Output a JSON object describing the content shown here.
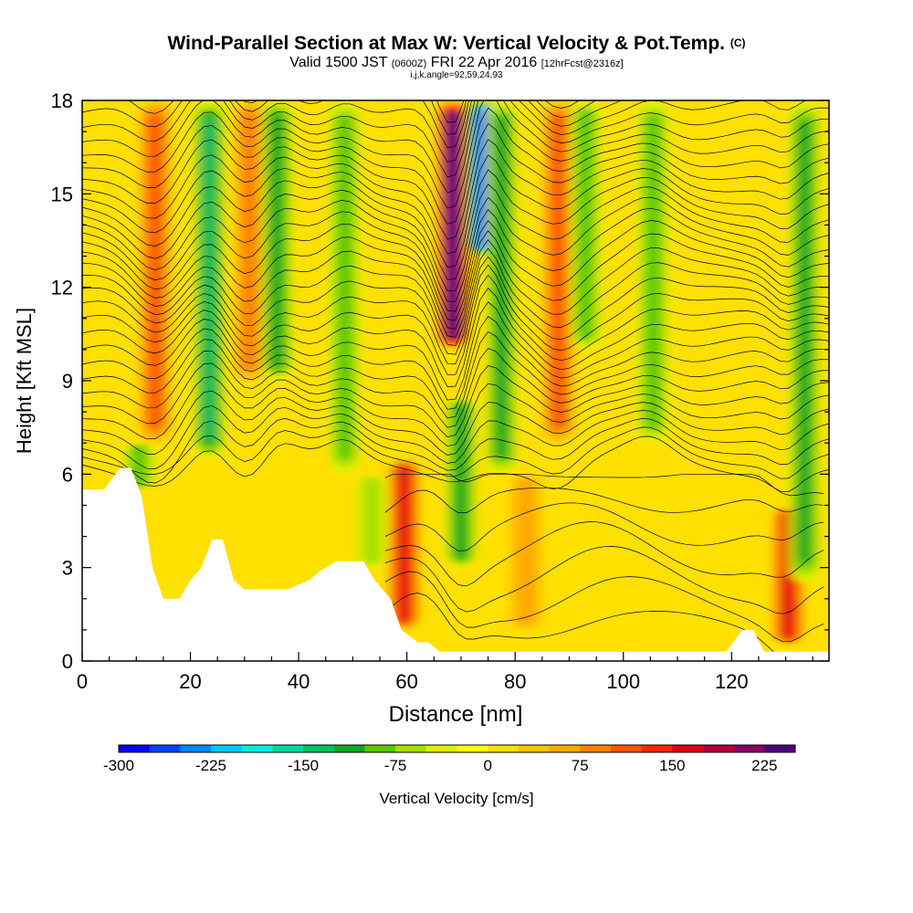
{
  "header": {
    "title": "Wind-Parallel Section at Max W: Vertical Velocity & Pot.Temp.",
    "title_suffix": "(C)",
    "valid_prefix": "Valid 1500 JST",
    "valid_zulu": "(0600Z)",
    "valid_date": "FRI 22 Apr 2016",
    "forecast_info": "[12hrFcst@2316z]",
    "indices": "i,j,k,angle=92,59,24,93"
  },
  "chart_data": {
    "type": "heatmap",
    "xlabel": "Distance [nm]",
    "ylabel": "Height [Kft MSL]",
    "xlim": [
      0,
      138
    ],
    "ylim": [
      0,
      18
    ],
    "xticks": [
      0,
      20,
      40,
      60,
      80,
      100,
      120
    ],
    "yticks": [
      0,
      3,
      6,
      9,
      12,
      15,
      18
    ],
    "colorbar": {
      "label": "Vertical Velocity [cm/s]",
      "min": -300,
      "max": 250,
      "step": 25,
      "tick_values": [
        -300,
        -225,
        -150,
        -75,
        0,
        75,
        150,
        225
      ],
      "colors": [
        "#0000ff",
        "#0044ff",
        "#0088ff",
        "#00c8ff",
        "#00f0e0",
        "#00d8a0",
        "#00c060",
        "#10a820",
        "#58c800",
        "#a8e000",
        "#e0f000",
        "#ffff00",
        "#ffe000",
        "#ffc400",
        "#ffa800",
        "#ff8000",
        "#ff5400",
        "#ff2800",
        "#e00010",
        "#b0003c",
        "#880060",
        "#500080"
      ]
    },
    "terrain_kft": [
      [
        0,
        5.5
      ],
      [
        4,
        5.5
      ],
      [
        7,
        6.2
      ],
      [
        9,
        6.2
      ],
      [
        11,
        5.3
      ],
      [
        13,
        3.0
      ],
      [
        15,
        2.0
      ],
      [
        18,
        2.0
      ],
      [
        20,
        2.6
      ],
      [
        22,
        3.0
      ],
      [
        24,
        3.9
      ],
      [
        26,
        3.9
      ],
      [
        28,
        2.6
      ],
      [
        30,
        2.3
      ],
      [
        34,
        2.3
      ],
      [
        38,
        2.3
      ],
      [
        42,
        2.6
      ],
      [
        44,
        2.9
      ],
      [
        47,
        3.2
      ],
      [
        52,
        3.2
      ],
      [
        54,
        2.6
      ],
      [
        57,
        2.0
      ],
      [
        59,
        1.0
      ],
      [
        62,
        0.6
      ],
      [
        64,
        0.6
      ],
      [
        66,
        0.3
      ],
      [
        80,
        0.3
      ],
      [
        100,
        0.3
      ],
      [
        119,
        0.3
      ],
      [
        122,
        1.0
      ],
      [
        124,
        1.0
      ],
      [
        126,
        0.3
      ],
      [
        138,
        0.3
      ]
    ],
    "updraft_cores": [
      {
        "x": 68.5,
        "z_range": [
          10.0,
          18.0
        ],
        "w": 240
      },
      {
        "x": 59.5,
        "z_range": [
          1.0,
          6.5
        ],
        "w": 150
      },
      {
        "x": 13.5,
        "z_range": [
          7.0,
          18.0
        ],
        "w": 90
      },
      {
        "x": 31.0,
        "z_range": [
          9.0,
          18.0
        ],
        "w": 80
      },
      {
        "x": 88.0,
        "z_range": [
          7.0,
          18.0
        ],
        "w": 110
      },
      {
        "x": 130.5,
        "z_range": [
          0.5,
          5.0
        ],
        "w": 140
      },
      {
        "x": 82.0,
        "z_range": [
          1.0,
          6.0
        ],
        "w": 60
      }
    ],
    "downdraft_cores": [
      {
        "x": 74.0,
        "z_range": [
          13.0,
          18.0
        ],
        "w": -260
      },
      {
        "x": 70.0,
        "z_range": [
          3.0,
          8.5
        ],
        "w": -110
      },
      {
        "x": 77.5,
        "z_range": [
          6.0,
          18.0
        ],
        "w": -100
      },
      {
        "x": 23.5,
        "z_range": [
          6.5,
          18.0
        ],
        "w": -120
      },
      {
        "x": 36.0,
        "z_range": [
          9.0,
          18.0
        ],
        "w": -90
      },
      {
        "x": 48.5,
        "z_range": [
          6.0,
          18.0
        ],
        "w": -80
      },
      {
        "x": 93.0,
        "z_range": [
          10.0,
          18.0
        ],
        "w": -80
      },
      {
        "x": 105.5,
        "z_range": [
          7.0,
          18.0
        ],
        "w": -70
      },
      {
        "x": 133.5,
        "z_range": [
          2.5,
          18.0
        ],
        "w": -100
      },
      {
        "x": 10.5,
        "z_range": [
          5.5,
          7.0
        ],
        "w": -80
      },
      {
        "x": 53.5,
        "z_range": [
          3.0,
          6.0
        ],
        "w": -60
      }
    ]
  }
}
